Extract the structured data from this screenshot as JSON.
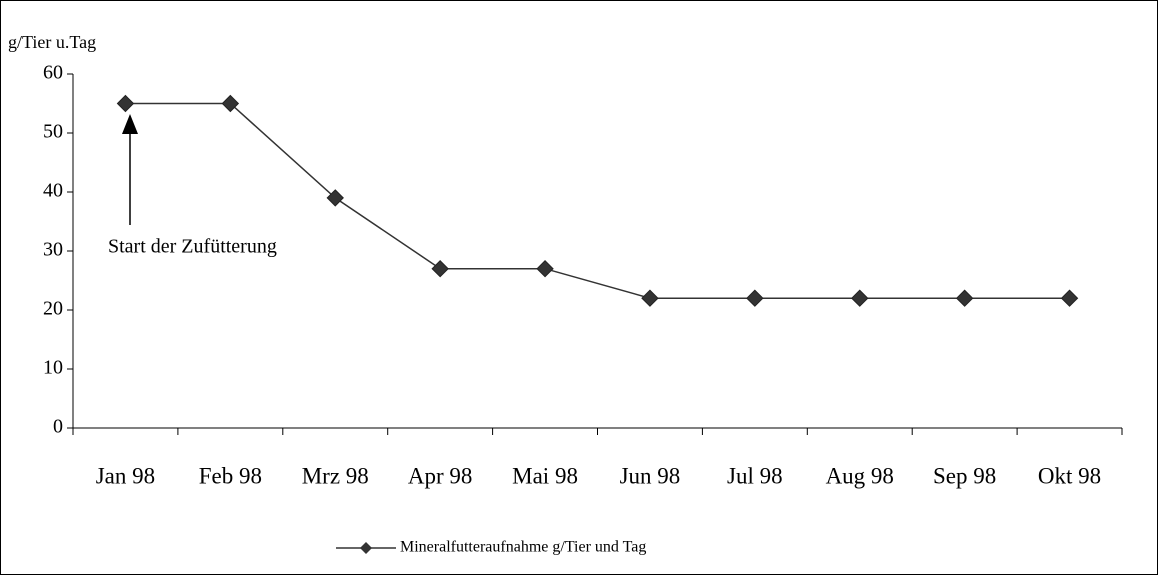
{
  "chart_data": {
    "type": "line",
    "y_axis_label": "g/Tier u.Tag",
    "categories": [
      "Jan 98",
      "Feb 98",
      "Mrz 98",
      "Apr 98",
      "Mai 98",
      "Jun 98",
      "Jul 98",
      "Aug 98",
      "Sep 98",
      "Okt 98"
    ],
    "series": [
      {
        "name": "Mineralfutteraufnahme g/Tier und Tag",
        "color": "#333333",
        "values": [
          55,
          55,
          39,
          27,
          27,
          22,
          22,
          22,
          22,
          22
        ]
      }
    ],
    "ylim": [
      0,
      60
    ],
    "yticks": [
      0,
      10,
      20,
      30,
      40,
      50,
      60
    ],
    "annotation": "Start der Zufütterung",
    "legend": "bottom"
  }
}
